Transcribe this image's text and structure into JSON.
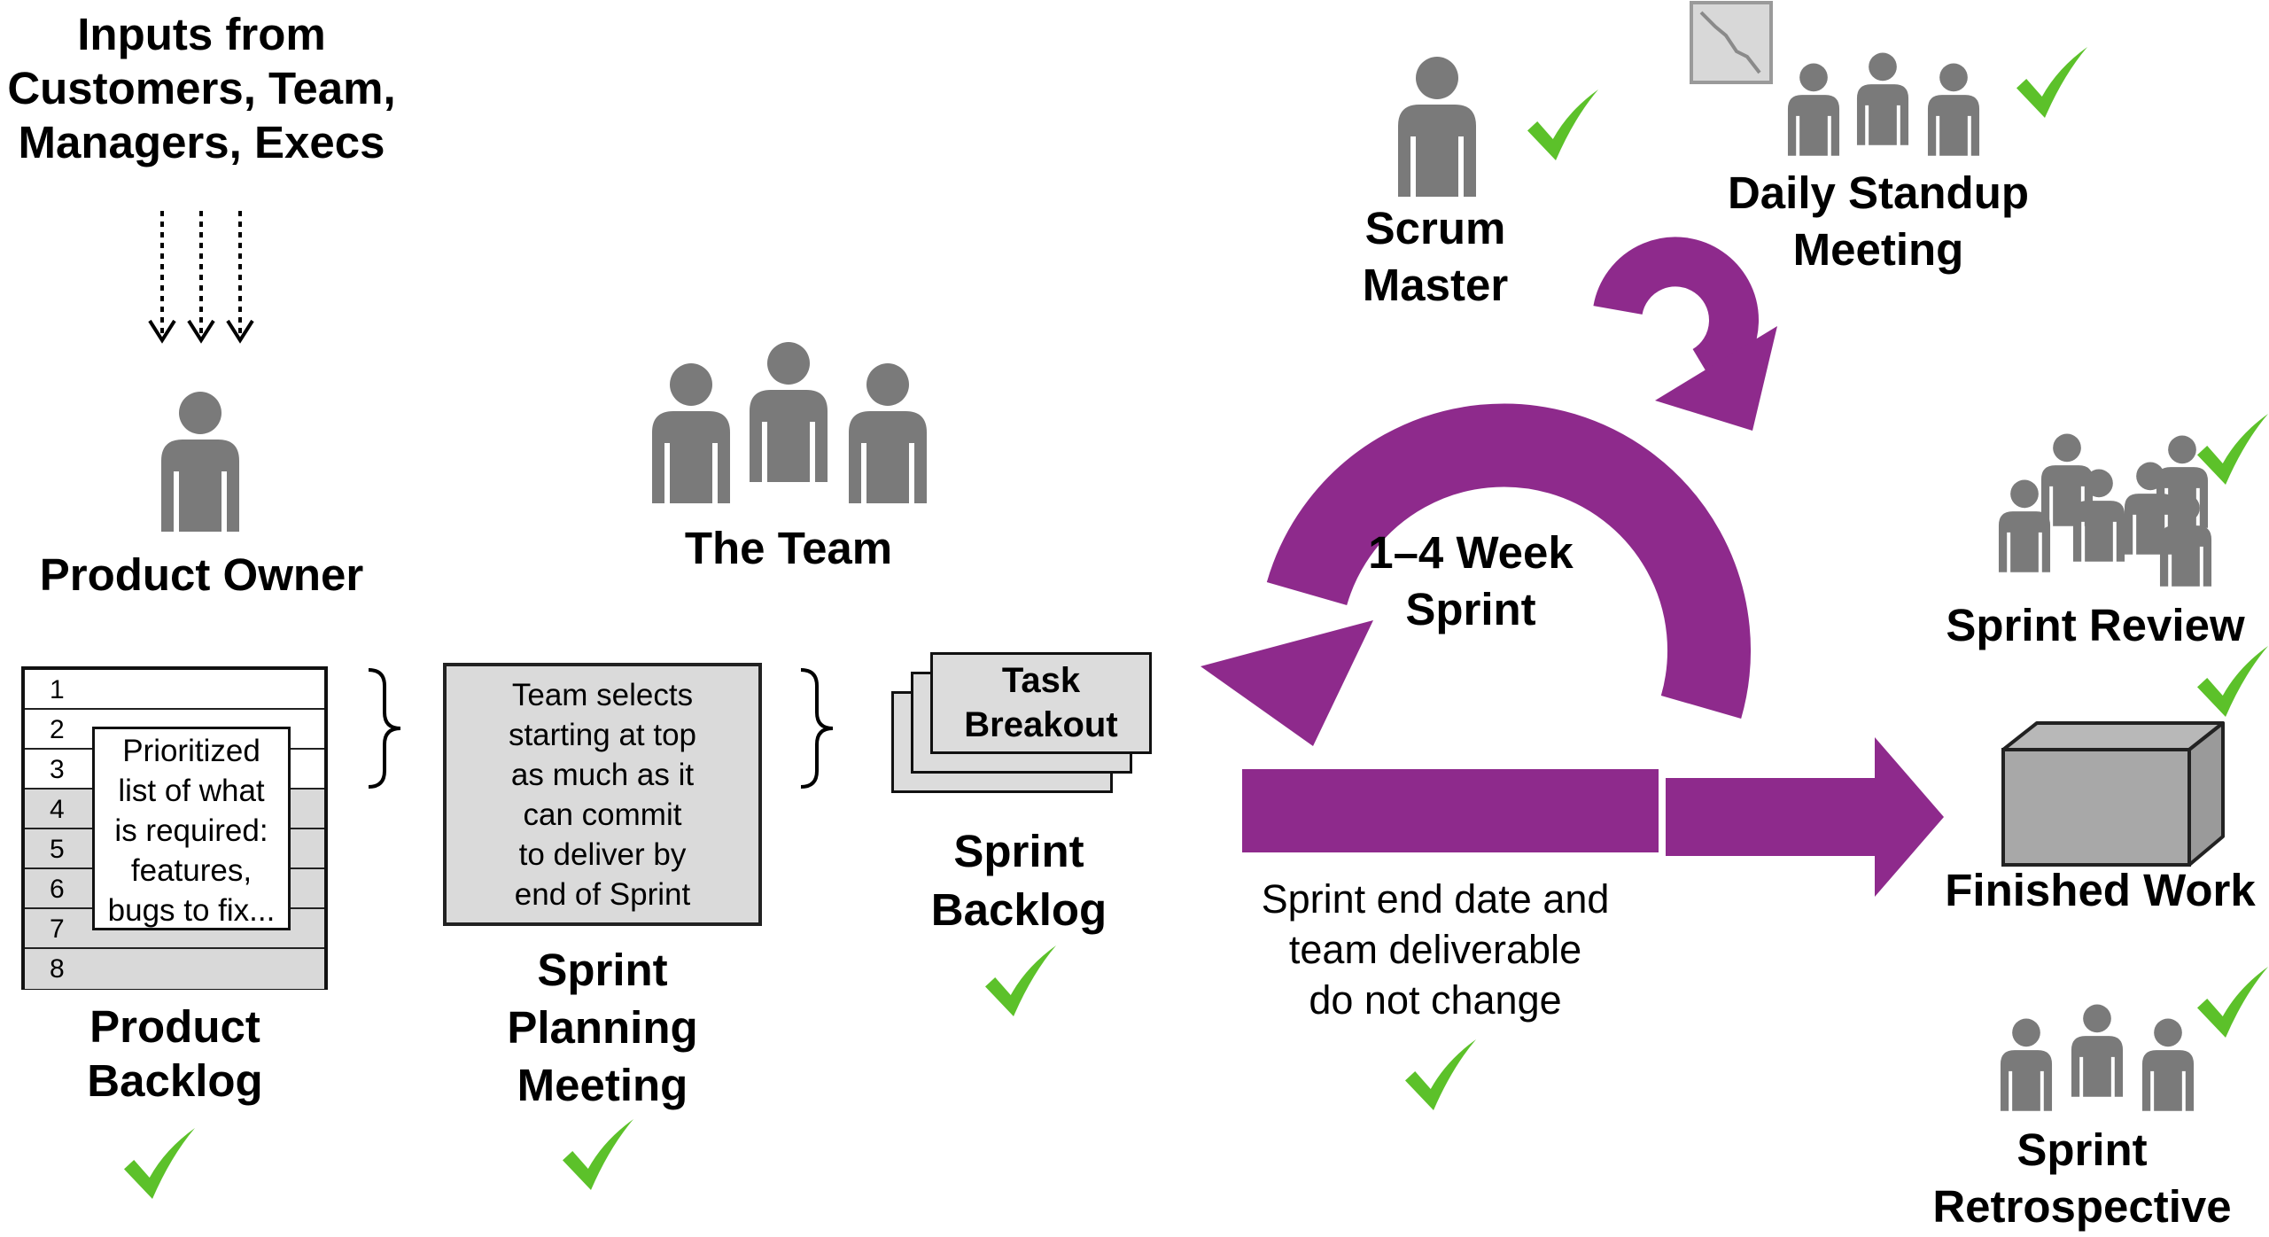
{
  "inputs": {
    "lines": [
      "Inputs from",
      "Customers, Team,",
      "Managers, Execs"
    ]
  },
  "product_owner": {
    "label": "Product Owner"
  },
  "product_backlog": {
    "rows": [
      "1",
      "2",
      "3",
      "4",
      "5",
      "6",
      "7",
      "8"
    ],
    "note": [
      "Prioritized",
      "list of what",
      "is required:",
      "features,",
      "bugs to fix..."
    ],
    "label": [
      "Product",
      "Backlog"
    ]
  },
  "team": {
    "label": "The Team"
  },
  "sprint_planning": {
    "note": [
      "Team selects",
      "starting at top",
      "as much as it",
      "can commit",
      "to deliver by",
      "end of Sprint"
    ],
    "label": [
      "Sprint",
      "Planning",
      "Meeting"
    ]
  },
  "sprint_backlog": {
    "task": [
      "Task",
      "Breakout"
    ],
    "label": [
      "Sprint",
      "Backlog"
    ]
  },
  "scrum_master": {
    "label": [
      "Scrum",
      "Master"
    ]
  },
  "daily_standup": {
    "label": [
      "Daily Standup",
      "Meeting"
    ]
  },
  "sprint_cycle": {
    "label": [
      "1–4 Week",
      "Sprint"
    ],
    "note": [
      "Sprint end date and",
      "team deliverable",
      "do not change"
    ]
  },
  "sprint_review": {
    "label": "Sprint Review"
  },
  "finished_work": {
    "label": "Finished Work"
  },
  "retrospective": {
    "label": [
      "Sprint",
      "Retrospective"
    ]
  },
  "colors": {
    "purple": "#8e2a8c",
    "check": "#5cc12a",
    "person": "#7a7a7a"
  }
}
